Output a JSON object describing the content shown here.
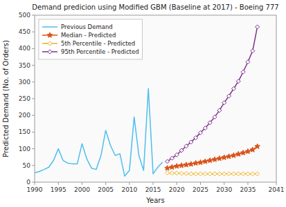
{
  "chart_data": {
    "type": "line",
    "title": "Demand predicion using Modified GBM (Baseline at 2017) - Boeing 777",
    "x_label": "Years",
    "y_label": "Predicted Demand (No. of Orders)",
    "xlim": [
      1990,
      2041
    ],
    "ylim": [
      0,
      500
    ],
    "xticks": [
      1990,
      1995,
      2000,
      2005,
      2010,
      2015,
      2020,
      2025,
      2030,
      2035,
      2041
    ],
    "yticks": [
      0,
      50,
      100,
      150,
      200,
      250,
      300,
      350,
      400,
      450,
      500
    ],
    "grid": false,
    "legend": "upper left",
    "series": [
      {
        "name": "Previous Demand",
        "color": "#4DBEEE",
        "marker": "none",
        "x": [
          1990,
          1991,
          1992,
          1993,
          1994,
          1995,
          1996,
          1997,
          1998,
          1999,
          2000,
          2001,
          2002,
          2003,
          2004,
          2005,
          2006,
          2007,
          2008,
          2009,
          2010,
          2011,
          2012,
          2013,
          2014,
          2015,
          2016,
          2017
        ],
        "values": [
          28,
          32,
          38,
          45,
          65,
          100,
          65,
          57,
          55,
          55,
          115,
          70,
          42,
          38,
          80,
          155,
          110,
          80,
          85,
          18,
          35,
          195,
          80,
          35,
          280,
          25,
          45,
          60
        ]
      },
      {
        "name": "Median - Predicted",
        "color": "#D95319",
        "marker": "star",
        "x": [
          2018,
          2019,
          2020,
          2021,
          2022,
          2023,
          2024,
          2025,
          2026,
          2027,
          2028,
          2029,
          2030,
          2031,
          2032,
          2033,
          2034,
          2035,
          2036,
          2037
        ],
        "values": [
          42,
          45,
          48,
          50,
          52,
          54,
          57,
          59,
          62,
          65,
          68,
          71,
          74,
          77,
          80,
          84,
          88,
          92,
          97,
          107
        ]
      },
      {
        "name": "5th Percentile - Predicted",
        "color": "#EDB120",
        "marker": "diamond",
        "x": [
          2018,
          2019,
          2020,
          2021,
          2022,
          2023,
          2024,
          2025,
          2026,
          2027,
          2028,
          2029,
          2030,
          2031,
          2032,
          2033,
          2034,
          2035,
          2036,
          2037
        ],
        "values": [
          28,
          27,
          27,
          26,
          26,
          25,
          25,
          25,
          25,
          25,
          25,
          25,
          25,
          25,
          25,
          25,
          25,
          25,
          25,
          25
        ]
      },
      {
        "name": "95th Percentile - Predicted",
        "color": "#7E2F8E",
        "marker": "diamond",
        "x": [
          2018,
          2019,
          2020,
          2021,
          2022,
          2023,
          2024,
          2025,
          2026,
          2027,
          2028,
          2029,
          2030,
          2031,
          2032,
          2033,
          2034,
          2035,
          2036,
          2037
        ],
        "values": [
          62,
          72,
          82,
          95,
          108,
          120,
          133,
          148,
          162,
          178,
          195,
          215,
          238,
          258,
          280,
          302,
          330,
          360,
          393,
          465
        ]
      }
    ]
  }
}
